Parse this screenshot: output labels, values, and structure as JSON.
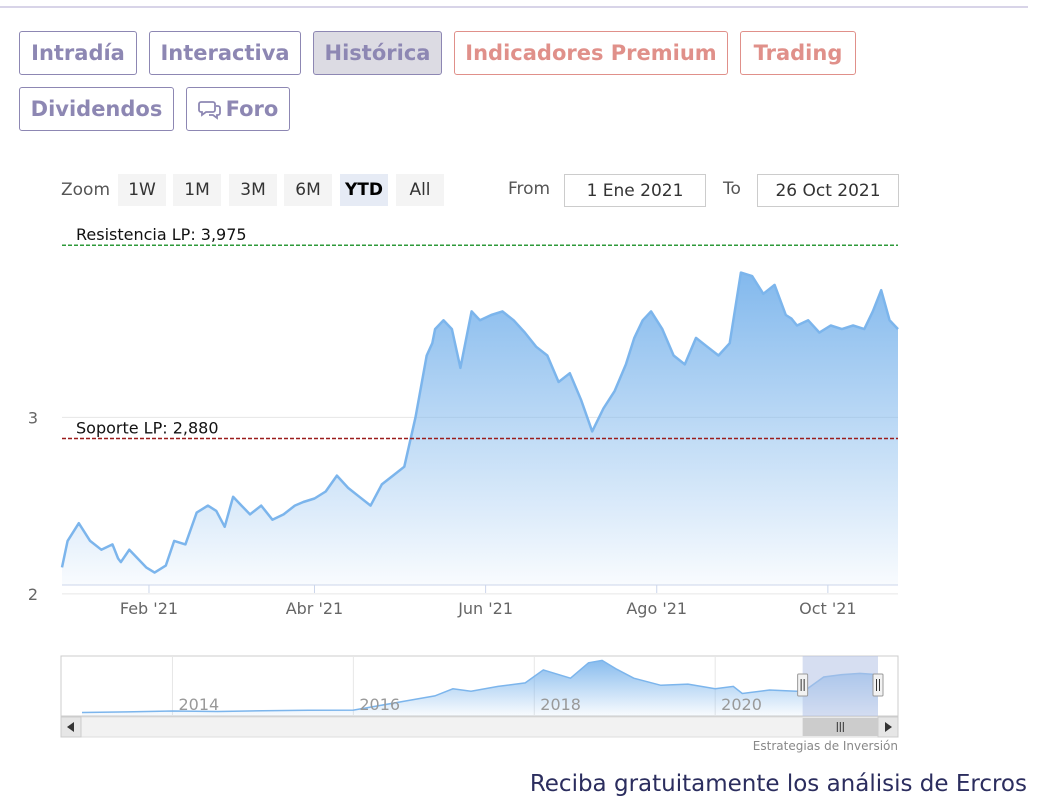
{
  "tabs": [
    {
      "label": "Intradía",
      "active": false,
      "style": "normal"
    },
    {
      "label": "Interactiva",
      "active": false,
      "style": "normal"
    },
    {
      "label": "Histórica",
      "active": true,
      "style": "normal"
    },
    {
      "label": "Indicadores Premium",
      "active": false,
      "style": "premium"
    },
    {
      "label": "Trading",
      "active": false,
      "style": "premium"
    },
    {
      "label": "Dividendos",
      "active": false,
      "style": "normal"
    },
    {
      "label": "Foro",
      "active": false,
      "style": "normal",
      "icon": "chat-bubbles-icon"
    }
  ],
  "zoom": {
    "label": "Zoom",
    "buttons": [
      "1W",
      "1M",
      "3M",
      "6M",
      "YTD",
      "All"
    ],
    "selected": "YTD"
  },
  "range": {
    "from_label": "From",
    "from_value": "1 Ene 2021",
    "to_label": "To",
    "to_value": "26 Oct 2021"
  },
  "colors": {
    "tab": "#8d87b3",
    "premium": "#e0908a",
    "line": "#7cb5ec",
    "resistance": "#2e9a3a",
    "support": "#9b1c1c",
    "navigator_mask": "#b4c3e6"
  },
  "credit": "Estrategias de Inversión",
  "promo": "Reciba gratuitamente los análisis de Ercros",
  "chart_data": [
    {
      "type": "area",
      "title": "",
      "xlabel": "",
      "ylabel": "",
      "x_range": [
        "2021-01-01",
        "2021-10-26"
      ],
      "ylim": [
        2.05,
        4.05
      ],
      "y_ticks": [
        {
          "value": 2,
          "label": "2"
        },
        {
          "value": 3,
          "label": "3"
        }
      ],
      "x_ticks": [
        {
          "date": "2021-02-01",
          "label": "Feb '21"
        },
        {
          "date": "2021-04-01",
          "label": "Abr '21"
        },
        {
          "date": "2021-06-01",
          "label": "Jun '21"
        },
        {
          "date": "2021-08-01",
          "label": "Ago '21"
        },
        {
          "date": "2021-10-01",
          "label": "Oct '21"
        }
      ],
      "plot_lines": [
        {
          "name": "Resistencia LP",
          "value": 3.975,
          "label": "Resistencia LP: 3,975",
          "color": "#2e9a3a",
          "dash": true
        },
        {
          "name": "Soporte LP",
          "value": 2.88,
          "label": "Soporte LP: 2,880",
          "color": "#9b1c1c",
          "dash": true
        }
      ],
      "series": [
        {
          "x": [
            "2021-01-01",
            "2021-01-03",
            "2021-01-07",
            "2021-01-11",
            "2021-01-15",
            "2021-01-19",
            "2021-01-21",
            "2021-01-22",
            "2021-01-25",
            "2021-01-28",
            "2021-01-31",
            "2021-02-03",
            "2021-02-07",
            "2021-02-10",
            "2021-02-14",
            "2021-02-18",
            "2021-02-22",
            "2021-02-25",
            "2021-02-28",
            "2021-03-03",
            "2021-03-06",
            "2021-03-09",
            "2021-03-13",
            "2021-03-17",
            "2021-03-21",
            "2021-03-25",
            "2021-03-28",
            "2021-04-01",
            "2021-04-05",
            "2021-04-09",
            "2021-04-13",
            "2021-04-17",
            "2021-04-21",
            "2021-04-25",
            "2021-04-29",
            "2021-05-03",
            "2021-05-07",
            "2021-05-11",
            "2021-05-13",
            "2021-05-14",
            "2021-05-17",
            "2021-05-20",
            "2021-05-23",
            "2021-05-27",
            "2021-05-30",
            "2021-06-03",
            "2021-06-07",
            "2021-06-11",
            "2021-06-15",
            "2021-06-19",
            "2021-06-23",
            "2021-06-27",
            "2021-07-01",
            "2021-07-05",
            "2021-07-09",
            "2021-07-13",
            "2021-07-17",
            "2021-07-21",
            "2021-07-24",
            "2021-07-27",
            "2021-07-30",
            "2021-08-03",
            "2021-08-07",
            "2021-08-11",
            "2021-08-15",
            "2021-08-19",
            "2021-08-23",
            "2021-08-27",
            "2021-08-31",
            "2021-09-04",
            "2021-09-08",
            "2021-09-12",
            "2021-09-16",
            "2021-09-18",
            "2021-09-20",
            "2021-09-24",
            "2021-09-28",
            "2021-10-02",
            "2021-10-06",
            "2021-10-10",
            "2021-10-14",
            "2021-10-17",
            "2021-10-20",
            "2021-10-23",
            "2021-10-26"
          ],
          "y": [
            2.15,
            2.3,
            2.4,
            2.3,
            2.25,
            2.28,
            2.2,
            2.18,
            2.25,
            2.2,
            2.15,
            2.12,
            2.16,
            2.3,
            2.28,
            2.46,
            2.5,
            2.47,
            2.38,
            2.55,
            2.5,
            2.45,
            2.5,
            2.42,
            2.45,
            2.5,
            2.52,
            2.54,
            2.58,
            2.67,
            2.6,
            2.55,
            2.5,
            2.62,
            2.67,
            2.72,
            3.0,
            3.35,
            3.42,
            3.5,
            3.55,
            3.5,
            3.28,
            3.6,
            3.55,
            3.58,
            3.6,
            3.55,
            3.48,
            3.4,
            3.35,
            3.2,
            3.25,
            3.1,
            2.92,
            3.05,
            3.15,
            3.3,
            3.45,
            3.55,
            3.6,
            3.5,
            3.35,
            3.3,
            3.45,
            3.4,
            3.35,
            3.42,
            3.82,
            3.8,
            3.7,
            3.75,
            3.58,
            3.56,
            3.52,
            3.55,
            3.48,
            3.52,
            3.5,
            3.52,
            3.5,
            3.6,
            3.72,
            3.55,
            3.5
          ]
        }
      ]
    },
    {
      "type": "area",
      "title": "",
      "x_ticks": [
        {
          "year": 2014,
          "label": "2014"
        },
        {
          "year": 2016,
          "label": "2016"
        },
        {
          "year": 2018,
          "label": "2018"
        },
        {
          "year": 2020,
          "label": "2020"
        }
      ],
      "selected_range": [
        "2021-01-01",
        "2021-10-26"
      ],
      "series": [
        {
          "x": [
            2013.0,
            2013.5,
            2014.0,
            2014.5,
            2015.0,
            2015.5,
            2016.0,
            2016.3,
            2016.6,
            2016.9,
            2017.1,
            2017.3,
            2017.6,
            2017.9,
            2018.1,
            2018.4,
            2018.6,
            2018.75,
            2018.9,
            2019.1,
            2019.4,
            2019.7,
            2020.0,
            2020.2,
            2020.3,
            2020.6,
            2020.9,
            2021.0,
            2021.2,
            2021.4,
            2021.6,
            2021.8
          ],
          "y": [
            0.3,
            0.35,
            0.42,
            0.38,
            0.45,
            0.48,
            0.5,
            0.9,
            1.3,
            1.7,
            2.3,
            2.1,
            2.5,
            2.8,
            3.9,
            3.2,
            4.5,
            4.7,
            4.0,
            3.2,
            2.6,
            2.7,
            2.3,
            2.5,
            1.9,
            2.2,
            2.1,
            2.2,
            3.3,
            3.5,
            3.6,
            3.5
          ]
        }
      ]
    }
  ]
}
